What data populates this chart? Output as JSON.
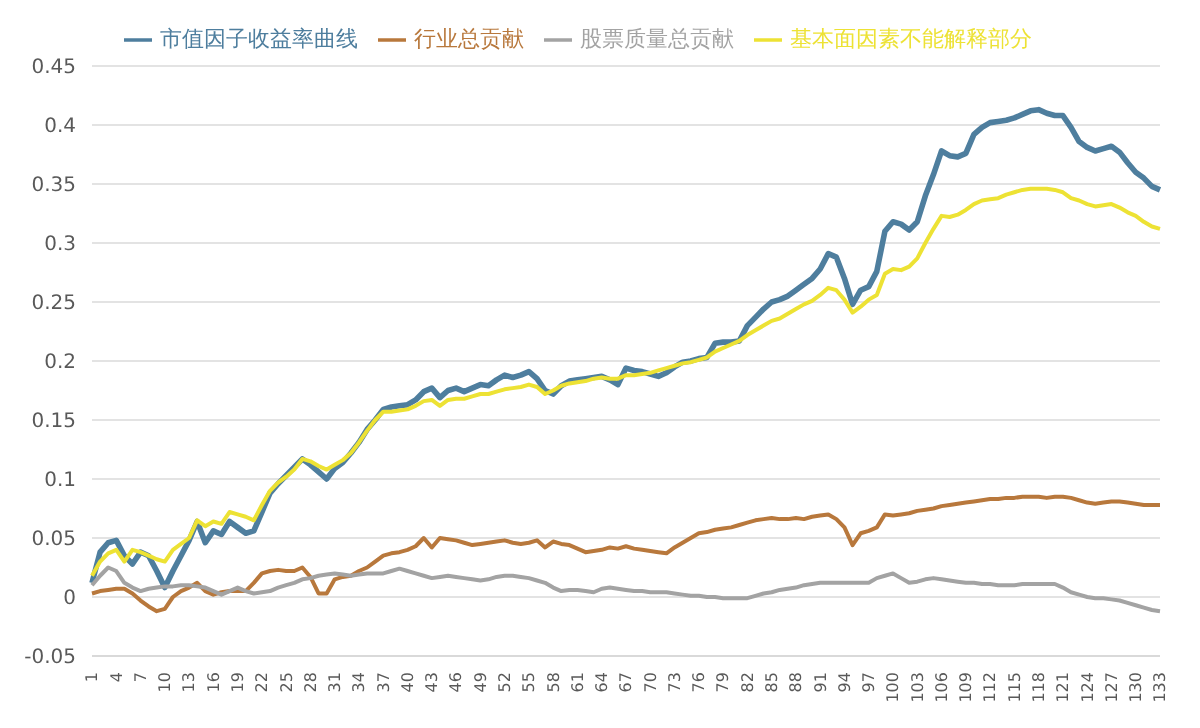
{
  "chart_data": {
    "type": "line",
    "categories": [
      "1",
      null,
      null,
      "4",
      null,
      null,
      "7",
      null,
      null,
      "10",
      null,
      null,
      "13",
      null,
      null,
      "16",
      null,
      null,
      "19",
      null,
      null,
      "22",
      null,
      null,
      "25",
      null,
      null,
      "28",
      null,
      null,
      "31",
      null,
      null,
      "34",
      null,
      null,
      "37",
      null,
      null,
      "40",
      null,
      null,
      "43",
      null,
      null,
      "46",
      null,
      null,
      "49",
      null,
      null,
      "52",
      null,
      null,
      "55",
      null,
      null,
      "58",
      null,
      null,
      "61",
      null,
      null,
      "64",
      null,
      null,
      "67",
      null,
      null,
      "70",
      null,
      null,
      "73",
      null,
      null,
      "76",
      null,
      null,
      "79",
      null,
      null,
      "82",
      null,
      null,
      "85",
      null,
      null,
      "88",
      null,
      null,
      "91",
      null,
      null,
      "94",
      null,
      null,
      "97",
      null,
      null,
      "100",
      null,
      null,
      "103",
      null,
      null,
      "106",
      null,
      null,
      "109",
      null,
      null,
      "112",
      null,
      null,
      "115",
      null,
      null,
      "118",
      null,
      null,
      "121",
      null,
      null,
      "124",
      null,
      null,
      "127",
      null,
      null,
      "130",
      null,
      null,
      "133"
    ],
    "series": [
      {
        "name": "市值因子收益率曲线",
        "color": "#4e7e9e",
        "values": [
          0.012,
          0.038,
          0.046,
          0.048,
          0.035,
          0.028,
          0.038,
          0.035,
          0.022,
          0.008,
          0.022,
          0.035,
          0.048,
          0.064,
          0.046,
          0.056,
          0.053,
          0.064,
          0.059,
          0.054,
          0.056,
          0.072,
          0.088,
          0.096,
          0.103,
          0.11,
          0.117,
          0.112,
          0.106,
          0.1,
          0.109,
          0.114,
          0.122,
          0.131,
          0.142,
          0.15,
          0.159,
          0.161,
          0.162,
          0.163,
          0.167,
          0.174,
          0.177,
          0.169,
          0.175,
          0.177,
          0.174,
          0.177,
          0.18,
          0.179,
          0.184,
          0.188,
          0.186,
          0.188,
          0.191,
          0.185,
          0.175,
          0.172,
          0.179,
          0.183,
          0.184,
          0.185,
          0.186,
          0.187,
          0.184,
          0.18,
          0.194,
          0.192,
          0.191,
          0.189,
          0.187,
          0.19,
          0.195,
          0.199,
          0.2,
          0.202,
          0.203,
          0.215,
          0.216,
          0.216,
          0.217,
          0.23,
          0.237,
          0.244,
          0.25,
          0.252,
          0.255,
          0.26,
          0.265,
          0.27,
          0.278,
          0.291,
          0.288,
          0.27,
          0.248,
          0.26,
          0.263,
          0.276,
          0.31,
          0.318,
          0.316,
          0.311,
          0.318,
          0.34,
          0.358,
          0.378,
          0.374,
          0.373,
          0.376,
          0.392,
          0.398,
          0.402,
          0.403,
          0.404,
          0.406,
          0.409,
          0.412,
          0.413,
          0.41,
          0.408,
          0.408,
          0.398,
          0.386,
          0.381,
          0.378,
          0.38,
          0.382,
          0.377,
          0.368,
          0.36,
          0.355,
          0.348,
          0.345
        ]
      },
      {
        "name": "行业总贡献",
        "color": "#b8783c",
        "values": [
          0.003,
          0.005,
          0.006,
          0.007,
          0.007,
          0.003,
          -0.003,
          -0.008,
          -0.012,
          -0.01,
          0,
          0.005,
          0.008,
          0.012,
          0.005,
          0.002,
          0.004,
          0.005,
          0.005,
          0.005,
          0.012,
          0.02,
          0.022,
          0.023,
          0.022,
          0.022,
          0.025,
          0.017,
          0.003,
          0.003,
          0.015,
          0.017,
          0.018,
          0.022,
          0.025,
          0.03,
          0.035,
          0.037,
          0.038,
          0.04,
          0.043,
          0.05,
          0.042,
          0.05,
          0.049,
          0.048,
          0.046,
          0.044,
          0.045,
          0.046,
          0.047,
          0.048,
          0.046,
          0.045,
          0.046,
          0.048,
          0.042,
          0.047,
          0.045,
          0.044,
          0.041,
          0.038,
          0.039,
          0.04,
          0.042,
          0.041,
          0.043,
          0.041,
          0.04,
          0.039,
          0.038,
          0.037,
          0.042,
          0.046,
          0.05,
          0.054,
          0.055,
          0.057,
          0.058,
          0.059,
          0.061,
          0.063,
          0.065,
          0.066,
          0.067,
          0.066,
          0.066,
          0.067,
          0.066,
          0.068,
          0.069,
          0.07,
          0.066,
          0.059,
          0.044,
          0.054,
          0.056,
          0.059,
          0.07,
          0.069,
          0.07,
          0.071,
          0.073,
          0.074,
          0.075,
          0.077,
          0.078,
          0.079,
          0.08,
          0.081,
          0.082,
          0.083,
          0.083,
          0.084,
          0.084,
          0.085,
          0.085,
          0.085,
          0.084,
          0.085,
          0.085,
          0.084,
          0.082,
          0.08,
          0.079,
          0.08,
          0.081,
          0.081,
          0.08,
          0.079,
          0.078,
          0.078,
          0.078
        ]
      },
      {
        "name": "股票质量总贡献",
        "color": "#a3a3a3",
        "values": [
          0.01,
          0.018,
          0.025,
          0.022,
          0.012,
          0.008,
          0.005,
          0.007,
          0.008,
          0.009,
          0.009,
          0.01,
          0.01,
          0.009,
          0.008,
          0.005,
          0.002,
          0.005,
          0.008,
          0.005,
          0.003,
          0.004,
          0.005,
          0.008,
          0.01,
          0.012,
          0.015,
          0.016,
          0.018,
          0.019,
          0.02,
          0.019,
          0.018,
          0.019,
          0.02,
          0.02,
          0.02,
          0.022,
          0.024,
          0.022,
          0.02,
          0.018,
          0.016,
          0.017,
          0.018,
          0.017,
          0.016,
          0.015,
          0.014,
          0.015,
          0.017,
          0.018,
          0.018,
          0.017,
          0.016,
          0.014,
          0.012,
          0.008,
          0.005,
          0.006,
          0.006,
          0.005,
          0.004,
          0.007,
          0.008,
          0.007,
          0.006,
          0.005,
          0.005,
          0.004,
          0.004,
          0.004,
          0.003,
          0.002,
          0.001,
          0.001,
          0,
          0,
          -0.001,
          -0.001,
          -0.001,
          -0.001,
          0.001,
          0.003,
          0.004,
          0.006,
          0.007,
          0.008,
          0.01,
          0.011,
          0.012,
          0.012,
          0.012,
          0.012,
          0.012,
          0.012,
          0.012,
          0.016,
          0.018,
          0.02,
          0.016,
          0.012,
          0.013,
          0.015,
          0.016,
          0.015,
          0.014,
          0.013,
          0.012,
          0.012,
          0.011,
          0.011,
          0.01,
          0.01,
          0.01,
          0.011,
          0.011,
          0.011,
          0.011,
          0.011,
          0.008,
          0.004,
          0.002,
          0,
          -0.001,
          -0.001,
          -0.002,
          -0.003,
          -0.005,
          -0.007,
          -0.009,
          -0.011,
          -0.012
        ]
      },
      {
        "name": "基本面因素不能解释部分",
        "color": "#ede234",
        "values": [
          0.018,
          0.03,
          0.037,
          0.04,
          0.03,
          0.04,
          0.038,
          0.035,
          0.032,
          0.03,
          0.04,
          0.045,
          0.05,
          0.065,
          0.06,
          0.064,
          0.062,
          0.072,
          0.07,
          0.068,
          0.065,
          0.078,
          0.09,
          0.097,
          0.102,
          0.108,
          0.117,
          0.115,
          0.111,
          0.108,
          0.112,
          0.116,
          0.122,
          0.131,
          0.141,
          0.15,
          0.157,
          0.157,
          0.158,
          0.159,
          0.162,
          0.166,
          0.167,
          0.162,
          0.167,
          0.168,
          0.168,
          0.17,
          0.172,
          0.172,
          0.174,
          0.176,
          0.177,
          0.178,
          0.18,
          0.178,
          0.172,
          0.175,
          0.179,
          0.181,
          0.182,
          0.183,
          0.185,
          0.186,
          0.185,
          0.185,
          0.188,
          0.188,
          0.189,
          0.19,
          0.192,
          0.194,
          0.196,
          0.198,
          0.199,
          0.201,
          0.203,
          0.208,
          0.211,
          0.214,
          0.217,
          0.222,
          0.226,
          0.23,
          0.234,
          0.236,
          0.24,
          0.244,
          0.248,
          0.251,
          0.256,
          0.262,
          0.26,
          0.252,
          0.241,
          0.246,
          0.252,
          0.256,
          0.274,
          0.278,
          0.277,
          0.28,
          0.287,
          0.3,
          0.312,
          0.323,
          0.322,
          0.324,
          0.328,
          0.333,
          0.336,
          0.337,
          0.338,
          0.341,
          0.343,
          0.345,
          0.346,
          0.346,
          0.346,
          0.345,
          0.343,
          0.338,
          0.336,
          0.333,
          0.331,
          0.332,
          0.333,
          0.33,
          0.326,
          0.323,
          0.318,
          0.314,
          0.312
        ]
      }
    ],
    "ylim": [
      -0.05,
      0.45
    ],
    "yticks": [
      -0.05,
      0,
      0.05,
      0.1,
      0.15,
      0.2,
      0.25,
      0.3,
      0.35,
      0.4,
      0.45
    ],
    "grid": "y",
    "legend": "top",
    "marker": "none",
    "line_style": "solid"
  }
}
